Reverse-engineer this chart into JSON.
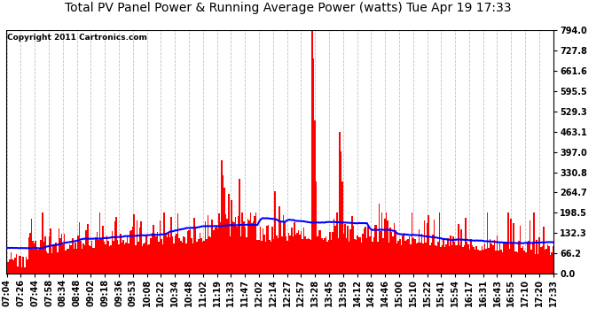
{
  "title": "Total PV Panel Power & Running Average Power (watts) Tue Apr 19 17:33",
  "copyright": "Copyright 2011 Cartronics.com",
  "ylabel_right_ticks": [
    0.0,
    66.2,
    132.3,
    198.5,
    264.7,
    330.8,
    397.0,
    463.1,
    529.3,
    595.5,
    661.6,
    727.8,
    794.0
  ],
  "ylim": [
    0,
    794.0
  ],
  "bg_color": "#ffffff",
  "plot_bg_color": "#ffffff",
  "grid_color": "#bbbbbb",
  "bar_color": "#ff0000",
  "avg_line_color": "#0000ff",
  "title_fontsize": 10,
  "tick_fontsize": 7,
  "copyright_fontsize": 6.5,
  "n_points": 400,
  "x_tick_labels": [
    "07:04",
    "07:26",
    "07:44",
    "07:58",
    "08:34",
    "08:48",
    "09:02",
    "09:18",
    "09:36",
    "09:53",
    "10:08",
    "10:22",
    "10:34",
    "10:48",
    "11:02",
    "11:19",
    "11:33",
    "11:47",
    "12:02",
    "12:14",
    "12:27",
    "12:57",
    "13:28",
    "13:45",
    "13:59",
    "14:12",
    "14:28",
    "14:46",
    "15:00",
    "15:10",
    "15:22",
    "15:41",
    "15:54",
    "16:17",
    "16:31",
    "16:43",
    "16:55",
    "17:10",
    "17:20",
    "17:33"
  ]
}
